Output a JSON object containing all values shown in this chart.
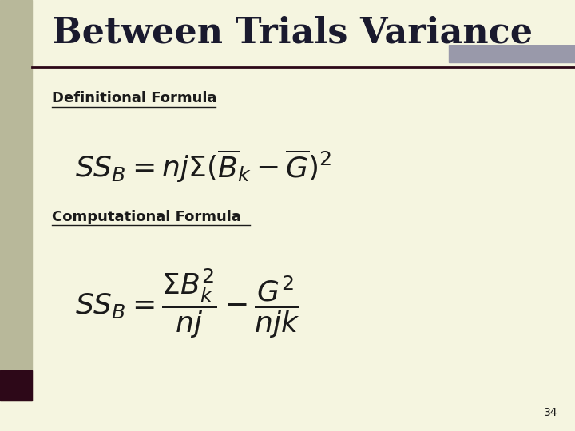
{
  "title": "Between Trials Variance",
  "slide_bg": "#f5f5e0",
  "title_color": "#1a1a2e",
  "title_fontsize": 32,
  "left_bar_olive": "#b8b89a",
  "left_bar_dark": "#2d0818",
  "top_right_bar": "#9999aa",
  "line_color": "#2d0818",
  "label1": "Definitional Formula",
  "label2": "Computational Formula",
  "page_number": "34",
  "text_color": "#1a1a1a",
  "label_fontsize": 13,
  "formula_fontsize": 26
}
